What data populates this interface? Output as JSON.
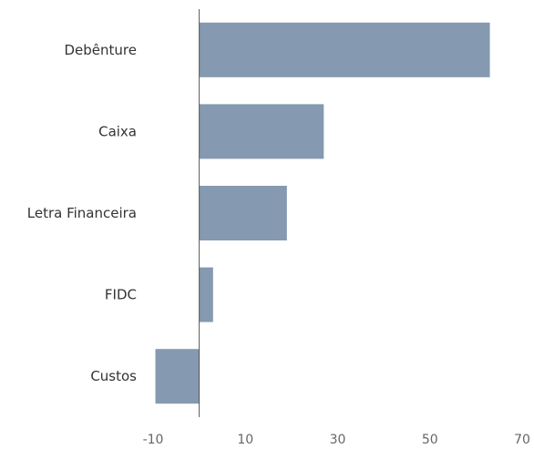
{
  "chart_data": {
    "type": "bar",
    "orientation": "horizontal",
    "categories": [
      "Debênture",
      "Caixa",
      "Letra Financeira",
      "FIDC",
      "Custos"
    ],
    "values": [
      63,
      27,
      19,
      3,
      -9.5
    ],
    "xlim": [
      -10,
      70
    ],
    "xticks": [
      -10,
      10,
      30,
      50,
      70
    ],
    "title": "",
    "xlabel": "",
    "ylabel": "",
    "grid": false,
    "legend": "none",
    "colors": {
      "bar": "#8599b1",
      "axis": "#555555"
    }
  }
}
